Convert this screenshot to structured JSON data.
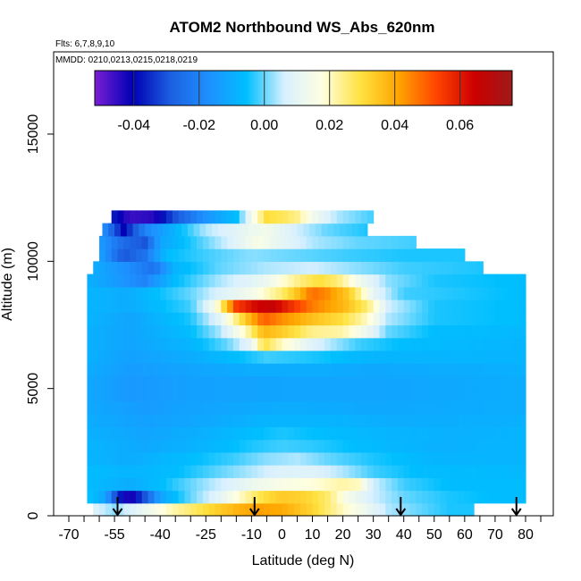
{
  "chart_data": {
    "type": "heatmap",
    "title": "ATOM2 Northbound WS_Abs_620nm",
    "flights_note": "Flts: 6,7,8,9,10",
    "dates_note": "MMDD: 0210,0213,0215,0218,0219",
    "xlabel": "Latitude (deg N)",
    "ylabel": "Altitude (m)",
    "xlim": [
      -70,
      85
    ],
    "ylim": [
      0,
      17500
    ],
    "x_tick_labels": [
      "-70",
      "-55",
      "-40",
      "-25",
      "-10",
      "0",
      "10",
      "20",
      "30",
      "40",
      "50",
      "60",
      "70",
      "80"
    ],
    "x_tick_values": [
      -70,
      -55,
      -40,
      -25,
      -10,
      0,
      10,
      20,
      30,
      40,
      50,
      60,
      70,
      80
    ],
    "y_tick_labels": [
      "0",
      "5000",
      "10000",
      "15000"
    ],
    "y_tick_values": [
      0,
      5000,
      10000,
      15000
    ],
    "colorbar": {
      "range": [
        -0.052,
        0.076
      ],
      "tick_values": [
        -0.04,
        -0.02,
        0.0,
        0.02,
        0.04,
        0.06
      ],
      "tick_labels": [
        "-0.04",
        "-0.02",
        "0.00",
        "0.02",
        "0.04",
        "0.06"
      ],
      "colors": [
        "#7a1fd6",
        "#0000b4",
        "#1c5fe0",
        "#1e90ff",
        "#00bfff",
        "#d8f0ff",
        "#ffffe0",
        "#ffe240",
        "#ffa500",
        "#ff4500",
        "#cc0000",
        "#9e1a1a"
      ]
    },
    "profile_markers_lat": [
      -54,
      -9,
      39,
      77
    ],
    "grid": false,
    "rows": [
      {
        "alt": 250,
        "lat": [
          -62,
          63
        ],
        "points": [
          [
            -62,
            0.008
          ],
          [
            -55,
            0.002
          ],
          [
            -45,
            0.012
          ],
          [
            -35,
            0.022
          ],
          [
            -25,
            0.03
          ],
          [
            -15,
            0.038
          ],
          [
            -8,
            0.042
          ],
          [
            0,
            0.04
          ],
          [
            10,
            0.032
          ],
          [
            20,
            0.02
          ],
          [
            28,
            0.012
          ],
          [
            35,
            0.004
          ],
          [
            45,
            0.0
          ],
          [
            55,
            -0.004
          ],
          [
            63,
            -0.004
          ]
        ]
      },
      {
        "alt": 750,
        "lat": [
          -64,
          80
        ],
        "points": [
          [
            -64,
            -0.004
          ],
          [
            -58,
            -0.012
          ],
          [
            -54,
            -0.035
          ],
          [
            -50,
            -0.045
          ],
          [
            -45,
            -0.03
          ],
          [
            -40,
            -0.012
          ],
          [
            -30,
            0.0
          ],
          [
            -20,
            0.01
          ],
          [
            -12,
            0.022
          ],
          [
            -6,
            0.03
          ],
          [
            0,
            0.034
          ],
          [
            8,
            0.032
          ],
          [
            15,
            0.026
          ],
          [
            22,
            0.014
          ],
          [
            30,
            0.006
          ],
          [
            40,
            0.0
          ],
          [
            55,
            -0.004
          ],
          [
            70,
            -0.006
          ],
          [
            80,
            -0.006
          ]
        ]
      },
      {
        "alt": 1250,
        "lat": [
          -64,
          80
        ],
        "points": [
          [
            -64,
            -0.006
          ],
          [
            -50,
            -0.01
          ],
          [
            -40,
            -0.006
          ],
          [
            -30,
            0.0
          ],
          [
            -20,
            0.006
          ],
          [
            -10,
            0.012
          ],
          [
            0,
            0.016
          ],
          [
            10,
            0.018
          ],
          [
            20,
            0.022
          ],
          [
            25,
            0.02
          ],
          [
            30,
            0.006
          ],
          [
            40,
            -0.002
          ],
          [
            55,
            -0.006
          ],
          [
            80,
            -0.006
          ]
        ]
      },
      {
        "alt": 1750,
        "lat": [
          -64,
          80
        ],
        "points": [
          [
            -64,
            -0.006
          ],
          [
            -50,
            -0.008
          ],
          [
            -35,
            -0.006
          ],
          [
            -20,
            0.0
          ],
          [
            -10,
            0.004
          ],
          [
            0,
            0.008
          ],
          [
            10,
            0.008
          ],
          [
            20,
            0.004
          ],
          [
            30,
            -0.002
          ],
          [
            45,
            -0.006
          ],
          [
            80,
            -0.007
          ]
        ]
      },
      {
        "alt": 2250,
        "lat": [
          -64,
          80
        ],
        "points": [
          [
            -64,
            -0.008
          ],
          [
            -50,
            -0.01
          ],
          [
            -30,
            -0.006
          ],
          [
            -15,
            -0.002
          ],
          [
            -5,
            0.002
          ],
          [
            5,
            0.004
          ],
          [
            15,
            0.0
          ],
          [
            30,
            -0.004
          ],
          [
            50,
            -0.008
          ],
          [
            80,
            -0.008
          ]
        ]
      },
      {
        "alt": 2750,
        "lat": [
          -64,
          80
        ],
        "points": [
          [
            -64,
            -0.008
          ],
          [
            -45,
            -0.011
          ],
          [
            -25,
            -0.008
          ],
          [
            -10,
            -0.004
          ],
          [
            0,
            -0.002
          ],
          [
            10,
            -0.003
          ],
          [
            25,
            -0.006
          ],
          [
            50,
            -0.009
          ],
          [
            80,
            -0.008
          ]
        ]
      },
      {
        "alt": 3250,
        "lat": [
          -64,
          80
        ],
        "points": [
          [
            -64,
            -0.009
          ],
          [
            -45,
            -0.012
          ],
          [
            -25,
            -0.009
          ],
          [
            -10,
            -0.006
          ],
          [
            0,
            -0.004
          ],
          [
            15,
            -0.006
          ],
          [
            35,
            -0.008
          ],
          [
            60,
            -0.009
          ],
          [
            80,
            -0.008
          ]
        ]
      },
      {
        "alt": 3750,
        "lat": [
          -64,
          80
        ],
        "points": [
          [
            -64,
            -0.01
          ],
          [
            -45,
            -0.013
          ],
          [
            -25,
            -0.011
          ],
          [
            -5,
            -0.008
          ],
          [
            15,
            -0.008
          ],
          [
            40,
            -0.01
          ],
          [
            80,
            -0.009
          ]
        ]
      },
      {
        "alt": 4250,
        "lat": [
          -64,
          80
        ],
        "points": [
          [
            -64,
            -0.011
          ],
          [
            -45,
            -0.014
          ],
          [
            -25,
            -0.012
          ],
          [
            0,
            -0.01
          ],
          [
            30,
            -0.011
          ],
          [
            80,
            -0.01
          ]
        ]
      },
      {
        "alt": 4750,
        "lat": [
          -64,
          80
        ],
        "points": [
          [
            -64,
            -0.011
          ],
          [
            -50,
            -0.015
          ],
          [
            -30,
            -0.013
          ],
          [
            0,
            -0.012
          ],
          [
            30,
            -0.012
          ],
          [
            80,
            -0.01
          ]
        ]
      },
      {
        "alt": 5250,
        "lat": [
          -64,
          80
        ],
        "points": [
          [
            -64,
            -0.011
          ],
          [
            -50,
            -0.015
          ],
          [
            -30,
            -0.013
          ],
          [
            0,
            -0.012
          ],
          [
            30,
            -0.012
          ],
          [
            80,
            -0.01
          ]
        ]
      },
      {
        "alt": 5750,
        "lat": [
          -64,
          80
        ],
        "points": [
          [
            -64,
            -0.01
          ],
          [
            -50,
            -0.014
          ],
          [
            -30,
            -0.012
          ],
          [
            -10,
            -0.01
          ],
          [
            10,
            -0.01
          ],
          [
            30,
            -0.011
          ],
          [
            80,
            -0.009
          ]
        ]
      },
      {
        "alt": 6250,
        "lat": [
          -64,
          80
        ],
        "points": [
          [
            -64,
            -0.009
          ],
          [
            -50,
            -0.013
          ],
          [
            -30,
            -0.01
          ],
          [
            -15,
            -0.006
          ],
          [
            -5,
            -0.002
          ],
          [
            10,
            -0.004
          ],
          [
            30,
            -0.008
          ],
          [
            80,
            -0.008
          ]
        ]
      },
      {
        "alt": 6750,
        "lat": [
          -64,
          80
        ],
        "points": [
          [
            -64,
            -0.009
          ],
          [
            -50,
            -0.012
          ],
          [
            -30,
            -0.008
          ],
          [
            -18,
            0.0
          ],
          [
            -10,
            0.01
          ],
          [
            -6,
            0.03
          ],
          [
            0,
            0.02
          ],
          [
            10,
            0.008
          ],
          [
            25,
            -0.002
          ],
          [
            40,
            -0.006
          ],
          [
            80,
            -0.008
          ]
        ]
      },
      {
        "alt": 7250,
        "lat": [
          -64,
          80
        ],
        "points": [
          [
            -64,
            -0.009
          ],
          [
            -50,
            -0.012
          ],
          [
            -30,
            -0.006
          ],
          [
            -20,
            0.004
          ],
          [
            -12,
            0.02
          ],
          [
            -6,
            0.038
          ],
          [
            0,
            0.034
          ],
          [
            10,
            0.024
          ],
          [
            20,
            0.022
          ],
          [
            28,
            0.012
          ],
          [
            35,
            0.0
          ],
          [
            50,
            -0.006
          ],
          [
            80,
            -0.007
          ]
        ]
      },
      {
        "alt": 7750,
        "lat": [
          -64,
          80
        ],
        "points": [
          [
            -64,
            -0.008
          ],
          [
            -50,
            -0.012
          ],
          [
            -30,
            -0.004
          ],
          [
            -20,
            0.01
          ],
          [
            -12,
            0.034
          ],
          [
            -6,
            0.05
          ],
          [
            0,
            0.044
          ],
          [
            10,
            0.036
          ],
          [
            20,
            0.03
          ],
          [
            28,
            0.02
          ],
          [
            35,
            0.004
          ],
          [
            50,
            -0.004
          ],
          [
            80,
            -0.006
          ]
        ]
      },
      {
        "alt": 8250,
        "lat": [
          -64,
          80
        ],
        "points": [
          [
            -64,
            -0.008
          ],
          [
            -50,
            -0.01
          ],
          [
            -30,
            -0.002
          ],
          [
            -22,
            0.014
          ],
          [
            -15,
            0.054
          ],
          [
            -8,
            0.064
          ],
          [
            -3,
            0.066
          ],
          [
            2,
            0.058
          ],
          [
            10,
            0.046
          ],
          [
            20,
            0.038
          ],
          [
            28,
            0.026
          ],
          [
            35,
            0.006
          ],
          [
            50,
            -0.004
          ],
          [
            80,
            -0.006
          ]
        ]
      },
      {
        "alt": 8750,
        "lat": [
          -64,
          80
        ],
        "points": [
          [
            -64,
            -0.008
          ],
          [
            -50,
            -0.01
          ],
          [
            -30,
            0.0
          ],
          [
            -20,
            0.008
          ],
          [
            -10,
            0.014
          ],
          [
            0,
            0.026
          ],
          [
            5,
            0.036
          ],
          [
            10,
            0.048
          ],
          [
            15,
            0.044
          ],
          [
            22,
            0.034
          ],
          [
            30,
            0.01
          ],
          [
            40,
            -0.002
          ],
          [
            80,
            -0.006
          ]
        ]
      },
      {
        "alt": 9250,
        "lat": [
          -64,
          80
        ],
        "points": [
          [
            -64,
            -0.009
          ],
          [
            -55,
            -0.014
          ],
          [
            -45,
            -0.02
          ],
          [
            -35,
            -0.006
          ],
          [
            -20,
            0.004
          ],
          [
            -5,
            0.012
          ],
          [
            5,
            0.024
          ],
          [
            12,
            0.03
          ],
          [
            18,
            0.026
          ],
          [
            25,
            0.014
          ],
          [
            35,
            0.002
          ],
          [
            50,
            -0.004
          ],
          [
            80,
            -0.006
          ]
        ]
      },
      {
        "alt": 9750,
        "lat": [
          -62,
          66
        ],
        "points": [
          [
            -62,
            -0.01
          ],
          [
            -50,
            -0.018
          ],
          [
            -42,
            -0.024
          ],
          [
            -35,
            -0.008
          ],
          [
            -20,
            0.0
          ],
          [
            -5,
            0.004
          ],
          [
            10,
            0.006
          ],
          [
            25,
            0.002
          ],
          [
            40,
            -0.002
          ],
          [
            66,
            -0.004
          ]
        ]
      },
      {
        "alt": 10250,
        "lat": [
          -60,
          60
        ],
        "points": [
          [
            -60,
            -0.012
          ],
          [
            -52,
            -0.03
          ],
          [
            -45,
            -0.024
          ],
          [
            -38,
            -0.006
          ],
          [
            -25,
            -0.002
          ],
          [
            -10,
            0.002
          ],
          [
            5,
            0.0
          ],
          [
            20,
            -0.002
          ],
          [
            40,
            -0.004
          ],
          [
            60,
            -0.004
          ]
        ]
      },
      {
        "alt": 10750,
        "lat": [
          -60,
          44
        ],
        "points": [
          [
            -60,
            -0.014
          ],
          [
            -52,
            -0.026
          ],
          [
            -45,
            -0.03
          ],
          [
            -40,
            -0.012
          ],
          [
            -30,
            -0.004
          ],
          [
            -18,
            0.006
          ],
          [
            -8,
            0.016
          ],
          [
            0,
            0.01
          ],
          [
            10,
            0.004
          ],
          [
            25,
            0.0
          ],
          [
            44,
            -0.002
          ]
        ]
      },
      {
        "alt": 11250,
        "lat": [
          -59,
          28
        ],
        "points": [
          [
            -59,
            -0.016
          ],
          [
            -52,
            -0.04
          ],
          [
            -45,
            -0.02
          ],
          [
            -35,
            -0.008
          ],
          [
            -25,
            0.004
          ],
          [
            -10,
            0.012
          ],
          [
            -5,
            0.014
          ],
          [
            5,
            0.006
          ],
          [
            15,
            0.0
          ],
          [
            28,
            -0.004
          ]
        ]
      },
      {
        "alt": 11750,
        "lat": [
          -56,
          30
        ],
        "points": [
          [
            -56,
            -0.036
          ],
          [
            -50,
            -0.046
          ],
          [
            -42,
            -0.044
          ],
          [
            -35,
            -0.03
          ],
          [
            -25,
            -0.016
          ],
          [
            -15,
            -0.006
          ],
          [
            -10,
            0.014
          ],
          [
            -5,
            0.03
          ],
          [
            0,
            0.028
          ],
          [
            5,
            0.024
          ],
          [
            10,
            0.014
          ],
          [
            18,
            0.004
          ],
          [
            30,
            -0.002
          ]
        ]
      }
    ]
  }
}
